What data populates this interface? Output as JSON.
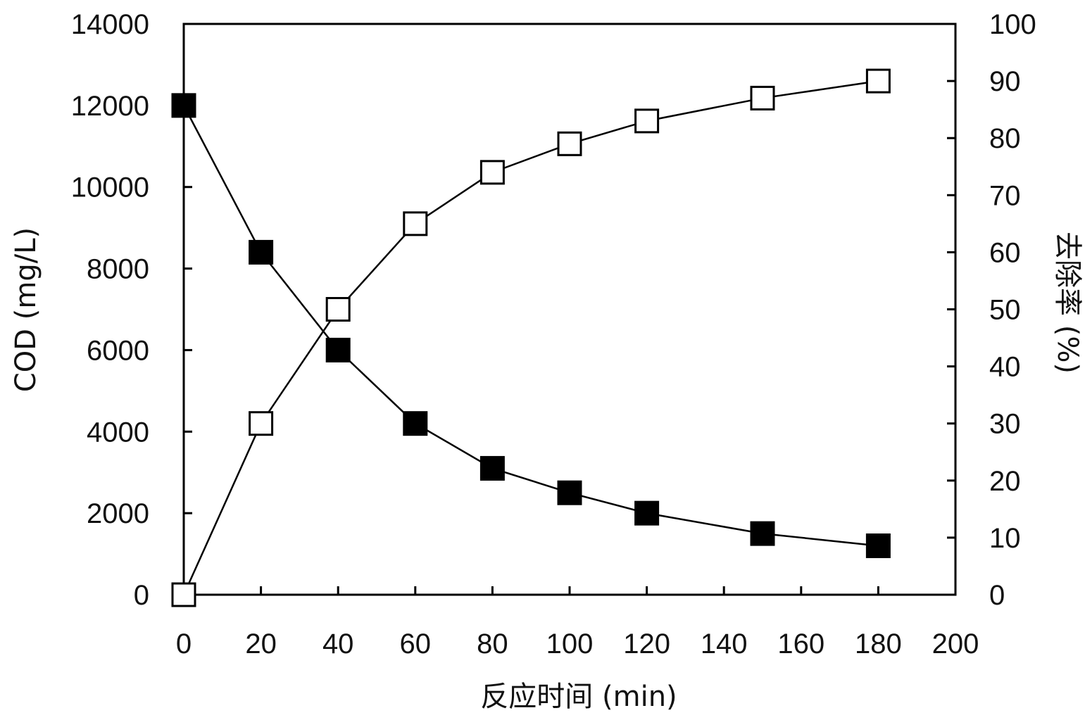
{
  "chart_data": {
    "type": "line",
    "title": "",
    "xlabel": "反应时间 (min)",
    "ylabel_left": "COD (mg/L)",
    "ylabel_right": "去除率 (%)",
    "xlim": [
      0,
      200
    ],
    "ylim_left": [
      0,
      14000
    ],
    "ylim_right": [
      0,
      100
    ],
    "x_ticks": [
      0,
      20,
      40,
      60,
      80,
      100,
      120,
      140,
      160,
      180,
      200
    ],
    "y_left_ticks": [
      0,
      2000,
      4000,
      6000,
      8000,
      10000,
      12000,
      14000
    ],
    "y_right_ticks": [
      0,
      10,
      20,
      30,
      40,
      50,
      60,
      70,
      80,
      90,
      100
    ],
    "grid": false,
    "legend": "none",
    "series": [
      {
        "axis": "left",
        "marker": "filled-square",
        "color": "#000000",
        "x": [
          0,
          20,
          40,
          60,
          80,
          100,
          120,
          150,
          180
        ],
        "values": [
          12000,
          8400,
          6000,
          4200,
          3100,
          2500,
          2000,
          1500,
          1200
        ]
      },
      {
        "axis": "right",
        "marker": "open-square",
        "color": "#000000",
        "x": [
          0,
          20,
          40,
          60,
          80,
          100,
          120,
          150,
          180
        ],
        "values": [
          0,
          30,
          50,
          65,
          74,
          79,
          83,
          87,
          90
        ]
      }
    ]
  }
}
